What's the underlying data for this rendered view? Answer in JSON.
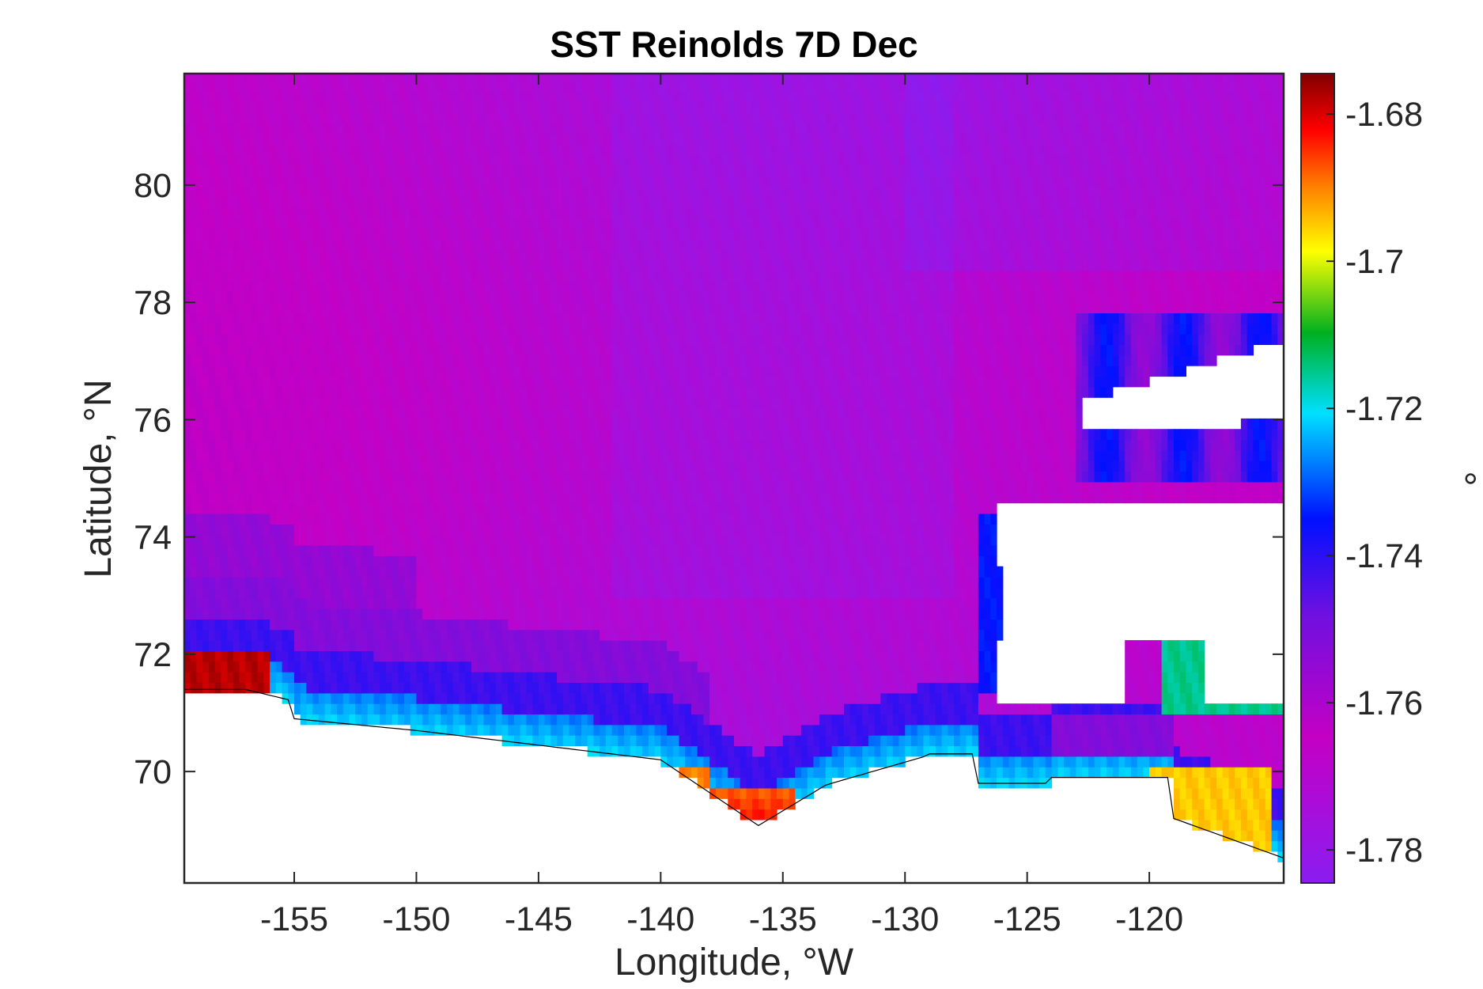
{
  "chart_data": {
    "type": "heatmap",
    "title": "SST Reinolds 7D Dec",
    "xlabel": "Longitude, °W",
    "ylabel": "Latitude, °N",
    "colorbar_label": "°",
    "xlim": [
      -159.5,
      -114.5
    ],
    "ylim": [
      68.1,
      81.9
    ],
    "clim": [
      -1.7845,
      -1.6745
    ],
    "x_ticks": [
      -155,
      -150,
      -145,
      -140,
      -135,
      -130,
      -125,
      -120
    ],
    "x_tick_labels": [
      "-155",
      "-150",
      "-145",
      "-140",
      "-135",
      "-130",
      "-125",
      "-120"
    ],
    "y_ticks": [
      70,
      72,
      74,
      76,
      78,
      80
    ],
    "y_tick_labels": [
      "70",
      "72",
      "74",
      "76",
      "78",
      "80"
    ],
    "colorbar_ticks": [
      -1.68,
      -1.7,
      -1.72,
      -1.74,
      -1.76,
      -1.78
    ],
    "colorbar_tick_labels": [
      "-1.68",
      "-1.7",
      "-1.72",
      "-1.74",
      "-1.76",
      "-1.78"
    ],
    "colormap": "purple-blue-cyan-green-yellow-orange-red-darkred",
    "colormap_stops": [
      "#8a1df0",
      "#c400c4",
      "#7010e0",
      "#0010ff",
      "#00e0ff",
      "#00b020",
      "#ffff00",
      "#ff8000",
      "#ff0000",
      "#800000"
    ],
    "land_color": "#ffffff",
    "coastline_color": "#000000",
    "grid": false,
    "cell_size_deg": [
      0.25,
      0.25
    ],
    "field_summary": "Open Beaufort Sea ~-1.765 to -1.775 (purple/magenta); blue band ~-1.75 along shelf break; cyan/green ~-1.73 near coast; coastal hot spots ~-1.68 to -1.69 near -158°, -137°, -118°"
  }
}
